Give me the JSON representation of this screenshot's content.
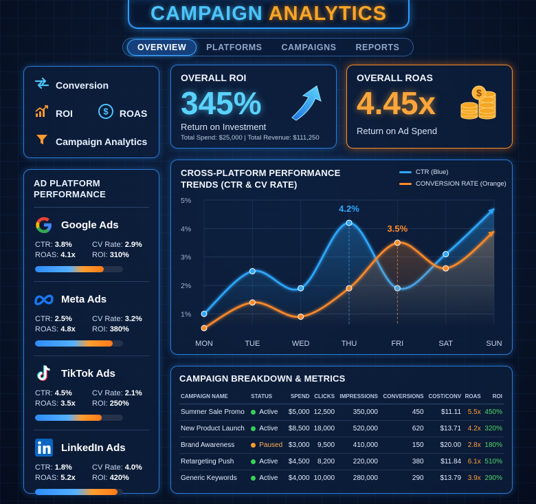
{
  "header": {
    "title_part1": "CAMPAIGN",
    "title_part2": "ANALYTICS",
    "tabs": [
      {
        "label": "OVERVIEW",
        "active": true
      },
      {
        "label": "PLATFORMS",
        "active": false
      },
      {
        "label": "CAMPAIGNS",
        "active": false
      },
      {
        "label": "REPORTS",
        "active": false
      }
    ]
  },
  "legend": {
    "conversion": "Conversion",
    "roi": "ROI",
    "roas": "ROAS",
    "campaign_analytics": "Campaign Analytics",
    "roas_symbol": "$"
  },
  "platforms": {
    "title": "AD PLATFORM PERFORMANCE",
    "items": [
      {
        "name": "Google Ads",
        "ctr_label": "CTR:",
        "ctr": "3.8%",
        "cv_label": "CV Rate:",
        "cv": "2.9%",
        "roas_label": "ROAS:",
        "roas": "4.1x",
        "roi_label": "ROI:",
        "roi": "310%",
        "progress": 0.78
      },
      {
        "name": "Meta Ads",
        "ctr_label": "CTR:",
        "ctr": "2.5%",
        "cv_label": "CV Rate:",
        "cv": "3.2%",
        "roas_label": "ROAS:",
        "roas": "4.8x",
        "roi_label": "ROI:",
        "roi": "380%",
        "progress": 0.88
      },
      {
        "name": "TikTok Ads",
        "ctr_label": "CTR:",
        "ctr": "4.5%",
        "cv_label": "CV Rate:",
        "cv": "2.1%",
        "roas_label": "ROAS:",
        "roas": "3.5x",
        "roi_label": "ROI:",
        "roi": "250%",
        "progress": 0.76
      },
      {
        "name": "LinkedIn Ads",
        "ctr_label": "CTR:",
        "ctr": "1.8%",
        "cv_label": "CV Rate:",
        "cv": "4.0%",
        "roas_label": "ROAS:",
        "roas": "5.2x",
        "roi_label": "ROI:",
        "roi": "420%",
        "progress": 0.94
      }
    ]
  },
  "roi_card": {
    "label": "OVERALL ROI",
    "value": "345%",
    "sub": "Return on Investment",
    "foot": "Total Spend: $25,000  |  Total Revenue: $111,250"
  },
  "roas_card": {
    "label": "OVERALL ROAS",
    "value": "4.45x",
    "sub": "Return on Ad Spend"
  },
  "colors": {
    "ctr": "#2ea8ff",
    "conversion": "#ff8a2a",
    "accent_blue": "#2a7ad8",
    "accent_orange": "#ff8a2a"
  },
  "chart_data": {
    "type": "line",
    "title": "CROSS-PLATFORM PERFORMANCE TRENDS (CTR & CV RATE)",
    "x": [
      "MON",
      "TUE",
      "WED",
      "THU",
      "FRI",
      "SAT",
      "SUN"
    ],
    "y_ticks": [
      "1%",
      "2%",
      "3%",
      "4%",
      "5%"
    ],
    "ylim": [
      0.6,
      5
    ],
    "series": [
      {
        "name": "CTR (Blue)",
        "color": "#2ea8ff",
        "values": [
          1.0,
          2.5,
          1.9,
          4.2,
          1.9,
          3.1,
          4.7
        ]
      },
      {
        "name": "CONVERSION RATE (Orange)",
        "color": "#ff8a2a",
        "values": [
          0.5,
          1.4,
          0.9,
          1.9,
          3.5,
          2.6,
          3.9
        ]
      }
    ],
    "annotations": [
      {
        "label": "4.2%",
        "series": 0,
        "index": 3
      },
      {
        "label": "3.5%",
        "series": 1,
        "index": 4
      }
    ],
    "grid": true,
    "legend": "top-right"
  },
  "campaign_table": {
    "title": "CAMPAIGN BREAKDOWN & METRICS",
    "columns": [
      "CAMPAIGN NAME",
      "STATUS",
      "SPEND",
      "CLICKS",
      "IMPRESSIONS",
      "CONVERSIONS",
      "COST/CONV",
      "ROAS",
      "ROI"
    ],
    "rows": [
      {
        "name": "Summer Sale Promo",
        "status": "Active",
        "spend": "$5,000",
        "clicks": "12,500",
        "impressions": "350,000",
        "conversions": "450",
        "cost": "$11.11",
        "roas": "5.5x",
        "roi": "450%"
      },
      {
        "name": "New Product Launch",
        "status": "Active",
        "spend": "$8,500",
        "clicks": "18,000",
        "impressions": "520,000",
        "conversions": "620",
        "cost": "$13.71",
        "roas": "4.2x",
        "roi": "320%"
      },
      {
        "name": "Brand Awareness",
        "status": "Paused",
        "spend": "$3,000",
        "clicks": "9,500",
        "impressions": "410,000",
        "conversions": "150",
        "cost": "$20.00",
        "roas": "2.8x",
        "roi": "180%"
      },
      {
        "name": "Retargeting Push",
        "status": "Active",
        "spend": "$4,500",
        "clicks": "8,200",
        "impressions": "220,000",
        "conversions": "380",
        "cost": "$11.84",
        "roas": "6.1x",
        "roi": "510%"
      },
      {
        "name": "Generic Keywords",
        "status": "Active",
        "spend": "$4,000",
        "clicks": "10,000",
        "impressions": "280,000",
        "conversions": "290",
        "cost": "$13.79",
        "roas": "3.9x",
        "roi": "290%"
      }
    ]
  }
}
